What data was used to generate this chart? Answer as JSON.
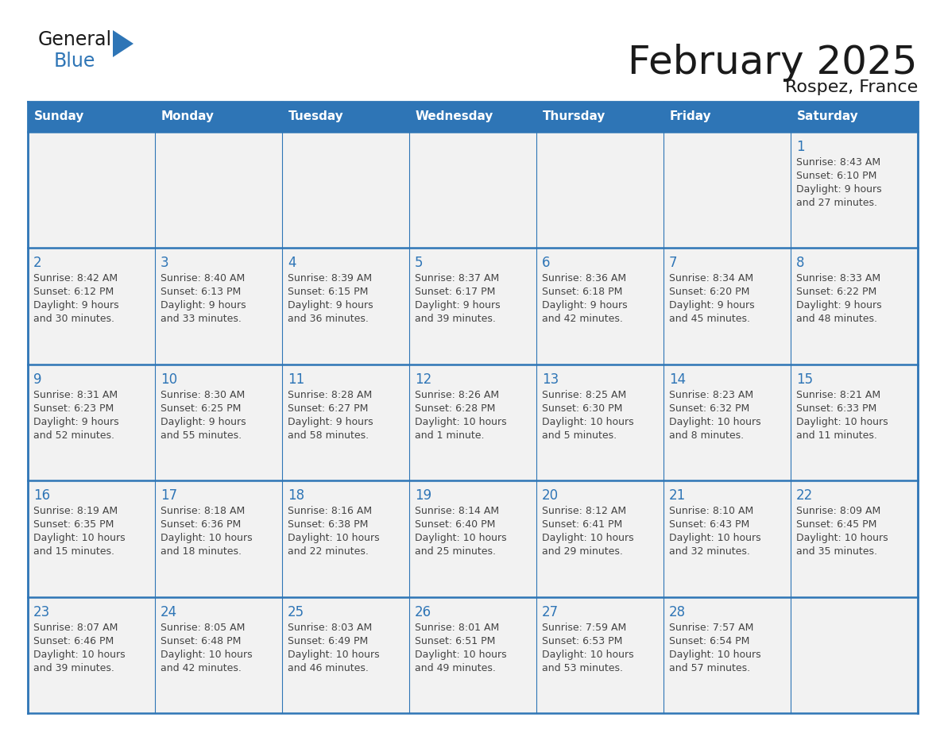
{
  "title": "February 2025",
  "subtitle": "Rospez, France",
  "header_color": "#2E75B6",
  "header_text_color": "#FFFFFF",
  "days_of_week": [
    "Sunday",
    "Monday",
    "Tuesday",
    "Wednesday",
    "Thursday",
    "Friday",
    "Saturday"
  ],
  "cell_bg_color": "#F2F2F2",
  "cell_data": [
    [
      null,
      null,
      null,
      null,
      null,
      null,
      {
        "day": "1",
        "sunrise": "8:43 AM",
        "sunset": "6:10 PM",
        "daylight": "9 hours\nand 27 minutes."
      }
    ],
    [
      {
        "day": "2",
        "sunrise": "8:42 AM",
        "sunset": "6:12 PM",
        "daylight": "9 hours\nand 30 minutes."
      },
      {
        "day": "3",
        "sunrise": "8:40 AM",
        "sunset": "6:13 PM",
        "daylight": "9 hours\nand 33 minutes."
      },
      {
        "day": "4",
        "sunrise": "8:39 AM",
        "sunset": "6:15 PM",
        "daylight": "9 hours\nand 36 minutes."
      },
      {
        "day": "5",
        "sunrise": "8:37 AM",
        "sunset": "6:17 PM",
        "daylight": "9 hours\nand 39 minutes."
      },
      {
        "day": "6",
        "sunrise": "8:36 AM",
        "sunset": "6:18 PM",
        "daylight": "9 hours\nand 42 minutes."
      },
      {
        "day": "7",
        "sunrise": "8:34 AM",
        "sunset": "6:20 PM",
        "daylight": "9 hours\nand 45 minutes."
      },
      {
        "day": "8",
        "sunrise": "8:33 AM",
        "sunset": "6:22 PM",
        "daylight": "9 hours\nand 48 minutes."
      }
    ],
    [
      {
        "day": "9",
        "sunrise": "8:31 AM",
        "sunset": "6:23 PM",
        "daylight": "9 hours\nand 52 minutes."
      },
      {
        "day": "10",
        "sunrise": "8:30 AM",
        "sunset": "6:25 PM",
        "daylight": "9 hours\nand 55 minutes."
      },
      {
        "day": "11",
        "sunrise": "8:28 AM",
        "sunset": "6:27 PM",
        "daylight": "9 hours\nand 58 minutes."
      },
      {
        "day": "12",
        "sunrise": "8:26 AM",
        "sunset": "6:28 PM",
        "daylight": "10 hours\nand 1 minute."
      },
      {
        "day": "13",
        "sunrise": "8:25 AM",
        "sunset": "6:30 PM",
        "daylight": "10 hours\nand 5 minutes."
      },
      {
        "day": "14",
        "sunrise": "8:23 AM",
        "sunset": "6:32 PM",
        "daylight": "10 hours\nand 8 minutes."
      },
      {
        "day": "15",
        "sunrise": "8:21 AM",
        "sunset": "6:33 PM",
        "daylight": "10 hours\nand 11 minutes."
      }
    ],
    [
      {
        "day": "16",
        "sunrise": "8:19 AM",
        "sunset": "6:35 PM",
        "daylight": "10 hours\nand 15 minutes."
      },
      {
        "day": "17",
        "sunrise": "8:18 AM",
        "sunset": "6:36 PM",
        "daylight": "10 hours\nand 18 minutes."
      },
      {
        "day": "18",
        "sunrise": "8:16 AM",
        "sunset": "6:38 PM",
        "daylight": "10 hours\nand 22 minutes."
      },
      {
        "day": "19",
        "sunrise": "8:14 AM",
        "sunset": "6:40 PM",
        "daylight": "10 hours\nand 25 minutes."
      },
      {
        "day": "20",
        "sunrise": "8:12 AM",
        "sunset": "6:41 PM",
        "daylight": "10 hours\nand 29 minutes."
      },
      {
        "day": "21",
        "sunrise": "8:10 AM",
        "sunset": "6:43 PM",
        "daylight": "10 hours\nand 32 minutes."
      },
      {
        "day": "22",
        "sunrise": "8:09 AM",
        "sunset": "6:45 PM",
        "daylight": "10 hours\nand 35 minutes."
      }
    ],
    [
      {
        "day": "23",
        "sunrise": "8:07 AM",
        "sunset": "6:46 PM",
        "daylight": "10 hours\nand 39 minutes."
      },
      {
        "day": "24",
        "sunrise": "8:05 AM",
        "sunset": "6:48 PM",
        "daylight": "10 hours\nand 42 minutes."
      },
      {
        "day": "25",
        "sunrise": "8:03 AM",
        "sunset": "6:49 PM",
        "daylight": "10 hours\nand 46 minutes."
      },
      {
        "day": "26",
        "sunrise": "8:01 AM",
        "sunset": "6:51 PM",
        "daylight": "10 hours\nand 49 minutes."
      },
      {
        "day": "27",
        "sunrise": "7:59 AM",
        "sunset": "6:53 PM",
        "daylight": "10 hours\nand 53 minutes."
      },
      {
        "day": "28",
        "sunrise": "7:57 AM",
        "sunset": "6:54 PM",
        "daylight": "10 hours\nand 57 minutes."
      },
      null
    ]
  ],
  "logo_text_general": "General",
  "logo_text_blue": "Blue",
  "logo_color_general": "#1a1a1a",
  "logo_color_blue": "#2E75B6",
  "logo_triangle_color": "#2E75B6",
  "background_color": "#FFFFFF",
  "line_color": "#2E75B6",
  "day_number_color": "#2E75B6",
  "cell_text_color": "#444444",
  "title_fontsize": 36,
  "subtitle_fontsize": 16,
  "header_fontsize": 11,
  "day_num_fontsize": 12,
  "cell_text_fontsize": 9
}
